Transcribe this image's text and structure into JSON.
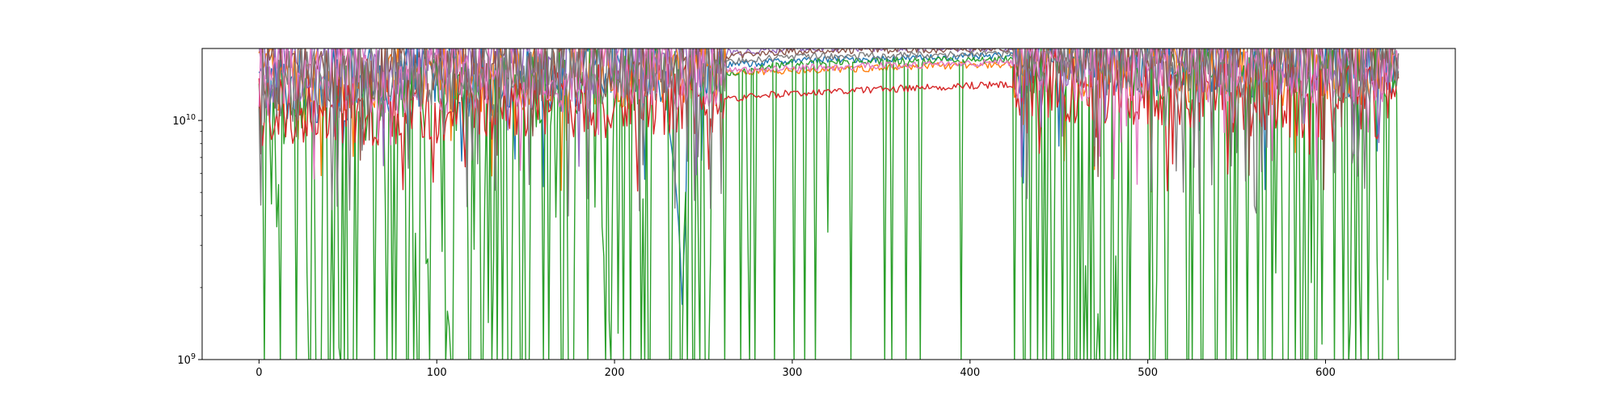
{
  "chart_data": {
    "type": "line",
    "title": "",
    "xlabel": "",
    "ylabel": "",
    "xlim": [
      -32,
      673
    ],
    "ylim": [
      1000000000,
      20000000000
    ],
    "yscale": "log",
    "grid": false,
    "legend": "none",
    "x_ticks": [
      {
        "value": 0,
        "label": "0"
      },
      {
        "value": 100,
        "label": "100"
      },
      {
        "value": 200,
        "label": "200"
      },
      {
        "value": 300,
        "label": "300"
      },
      {
        "value": 400,
        "label": "400"
      },
      {
        "value": 500,
        "label": "500"
      },
      {
        "value": 600,
        "label": "600"
      }
    ],
    "y_ticks": [
      {
        "value": 1000000000,
        "base": "10",
        "exponent": "9"
      },
      {
        "value": 10000000000,
        "base": "10",
        "exponent": "10"
      }
    ],
    "x_range": [
      0,
      641
    ],
    "quiet_window": [
      262,
      425
    ],
    "series": [
      {
        "color": "#1f77b4",
        "values_at_x": [
          [
            0,
            13500000000
          ],
          [
            262,
            17000000000
          ],
          [
            300,
            17800000000
          ],
          [
            420,
            18600000000
          ],
          [
            641,
            17500000000
          ]
        ],
        "dips_to": 1700000000,
        "dip_x": 238
      },
      {
        "color": "#ff7f0e",
        "values_at_x": [
          [
            0,
            15500000000
          ],
          [
            262,
            15800000000
          ],
          [
            300,
            16200000000
          ],
          [
            420,
            17200000000
          ],
          [
            641,
            16500000000
          ]
        ]
      },
      {
        "color": "#2ca02c",
        "values_at_x": [
          [
            0,
            11000000000
          ],
          [
            262,
            15500000000
          ],
          [
            300,
            17500000000
          ],
          [
            420,
            18000000000
          ],
          [
            641,
            16000000000
          ]
        ],
        "dips_to": 1000000000
      },
      {
        "color": "#d62728",
        "values_at_x": [
          [
            0,
            11000000000
          ],
          [
            262,
            12300000000
          ],
          [
            300,
            13000000000
          ],
          [
            420,
            14200000000
          ],
          [
            641,
            11500000000
          ]
        ]
      },
      {
        "color": "#9467bd",
        "values_at_x": [
          [
            0,
            17000000000
          ],
          [
            262,
            19200000000
          ],
          [
            300,
            20000000000
          ],
          [
            420,
            20000000000
          ],
          [
            641,
            18000000000
          ]
        ]
      },
      {
        "color": "#8c564b",
        "values_at_x": [
          [
            0,
            16000000000
          ],
          [
            262,
            18500000000
          ],
          [
            300,
            19500000000
          ],
          [
            420,
            20000000000
          ],
          [
            641,
            17500000000
          ]
        ]
      },
      {
        "color": "#e377c2",
        "values_at_x": [
          [
            0,
            15000000000
          ],
          [
            262,
            16000000000
          ],
          [
            300,
            16500000000
          ],
          [
            420,
            17500000000
          ],
          [
            641,
            16800000000
          ]
        ]
      },
      {
        "color": "#7f7f7f",
        "values_at_x": [
          [
            0,
            14000000000
          ],
          [
            262,
            17500000000
          ],
          [
            300,
            18500000000
          ],
          [
            420,
            19000000000
          ],
          [
            641,
            17000000000
          ]
        ],
        "dips_to": 4000000000
      }
    ]
  }
}
